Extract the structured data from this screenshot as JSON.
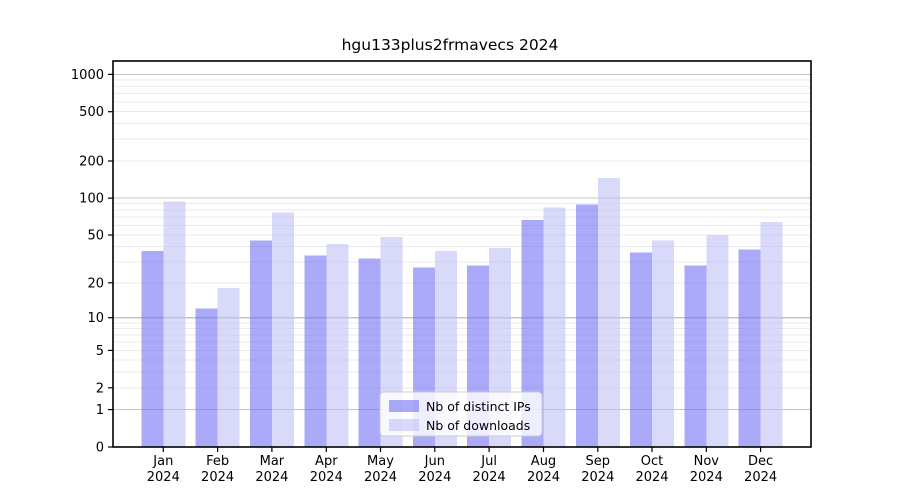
{
  "figure": {
    "title": "hgu133plus2frmavecs 2024"
  },
  "chart_data": {
    "type": "bar",
    "title": "hgu133plus2frmavecs 2024",
    "categories": [
      "Jan 2024",
      "Feb 2024",
      "Mar 2024",
      "Apr 2024",
      "May 2024",
      "Jun 2024",
      "Jul 2024",
      "Aug 2024",
      "Sep 2024",
      "Oct 2024",
      "Nov 2024",
      "Dec 2024"
    ],
    "series": [
      {
        "name": "Nb of distinct IPs",
        "color": "rgba(113,113,243,0.6)",
        "values": [
          37,
          12,
          45,
          34,
          32,
          27,
          28,
          66,
          89,
          36,
          28,
          38
        ]
      },
      {
        "name": "Nb of downloads",
        "color": "rgba(192,192,247,0.6)",
        "values": [
          94,
          18,
          76,
          42,
          48,
          37,
          39,
          84,
          145,
          45,
          50,
          64
        ]
      }
    ],
    "xlabel": "",
    "ylabel": "",
    "yscale": "log1p",
    "yticks": [
      0,
      1,
      2,
      5,
      10,
      20,
      50,
      100,
      200,
      500,
      1000
    ],
    "ylim": [
      0,
      1300
    ],
    "grid": true,
    "legend_position": "lower center"
  },
  "colors": {
    "background": "#ffffff",
    "frame": "#000000",
    "grid_minor": "#ebebeb",
    "grid_major": "#c4c4c4",
    "tick": "#000000",
    "text": "#000000",
    "legend_bg": "rgba(255,255,255,0.8)",
    "legend_border": "#cccccc"
  }
}
